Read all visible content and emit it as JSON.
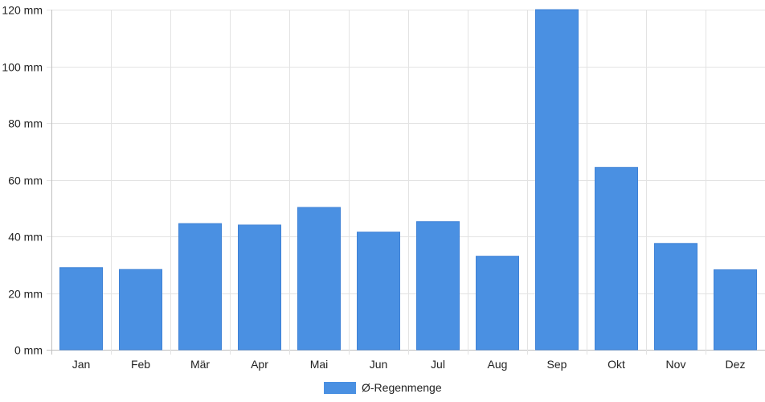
{
  "chart_data": {
    "type": "bar",
    "categories": [
      "Jan",
      "Feb",
      "Mär",
      "Apr",
      "Mai",
      "Jun",
      "Jul",
      "Aug",
      "Sep",
      "Okt",
      "Nov",
      "Dez"
    ],
    "series": [
      {
        "name": "Ø-Regenmenge",
        "values": [
          29,
          28.3,
          44.5,
          44,
          50.2,
          41.5,
          45.2,
          33,
          120,
          64.3,
          37.5,
          28.2
        ],
        "color": "#4a90e2"
      }
    ],
    "y_ticks": [
      "0 mm",
      "20 mm",
      "40 mm",
      "60 mm",
      "80 mm",
      "100 mm",
      "120 mm"
    ],
    "ylim": [
      0,
      120
    ],
    "y_unit": "mm",
    "grid": true,
    "legend_position": "bottom"
  }
}
